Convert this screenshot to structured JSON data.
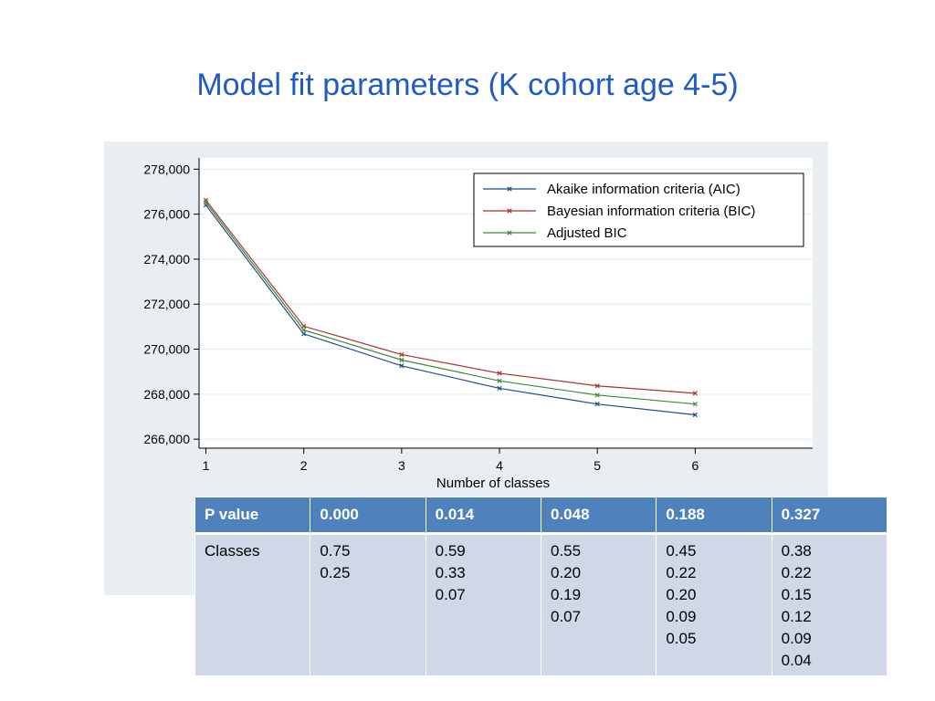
{
  "slide": {
    "title": "Model fit parameters (K cohort age 4-5)"
  },
  "chart_data": {
    "type": "line",
    "title": "",
    "xlabel": "Number of classes",
    "ylabel": "",
    "x": [
      1,
      2,
      3,
      4,
      5,
      6
    ],
    "xlim": [
      0.93,
      7.2
    ],
    "ylim": [
      265600,
      278500
    ],
    "xticks": [
      1,
      2,
      3,
      4,
      5,
      6
    ],
    "yticks": [
      266000,
      268000,
      270000,
      272000,
      274000,
      276000,
      278000
    ],
    "yticklabels": [
      "266,000",
      "268,000",
      "270,000",
      "272,000",
      "274,000",
      "276,000",
      "278,000"
    ],
    "grid": true,
    "legend_position": "top-right",
    "series": [
      {
        "name": "Akaike information criteria (AIC)",
        "color": "#1f4e8c",
        "values": [
          276400,
          270680,
          269260,
          268260,
          267560,
          267080
        ]
      },
      {
        "name": "Bayesian information criteria (BIC)",
        "color": "#a83232",
        "values": [
          276620,
          271020,
          269760,
          268930,
          268370,
          268040
        ]
      },
      {
        "name": "Adjusted BIC",
        "color": "#3f8a3a",
        "values": [
          276520,
          270850,
          269520,
          268590,
          267960,
          267560
        ]
      }
    ]
  },
  "table": {
    "header": [
      "P value",
      "0.000",
      "0.014",
      "0.048",
      "0.188",
      "0.327"
    ],
    "row_label": "Classes",
    "cells": [
      [
        "0.75",
        "0.25"
      ],
      [
        "0.59",
        "0.33",
        "0.07"
      ],
      [
        "0.55",
        "0.20",
        "0.19",
        "0.07"
      ],
      [
        "0.45",
        "0.22",
        "0.20",
        "0.09",
        "0.05"
      ],
      [
        "0.38",
        "0.22",
        "0.15",
        "0.12",
        "0.09",
        "0.04"
      ]
    ]
  }
}
